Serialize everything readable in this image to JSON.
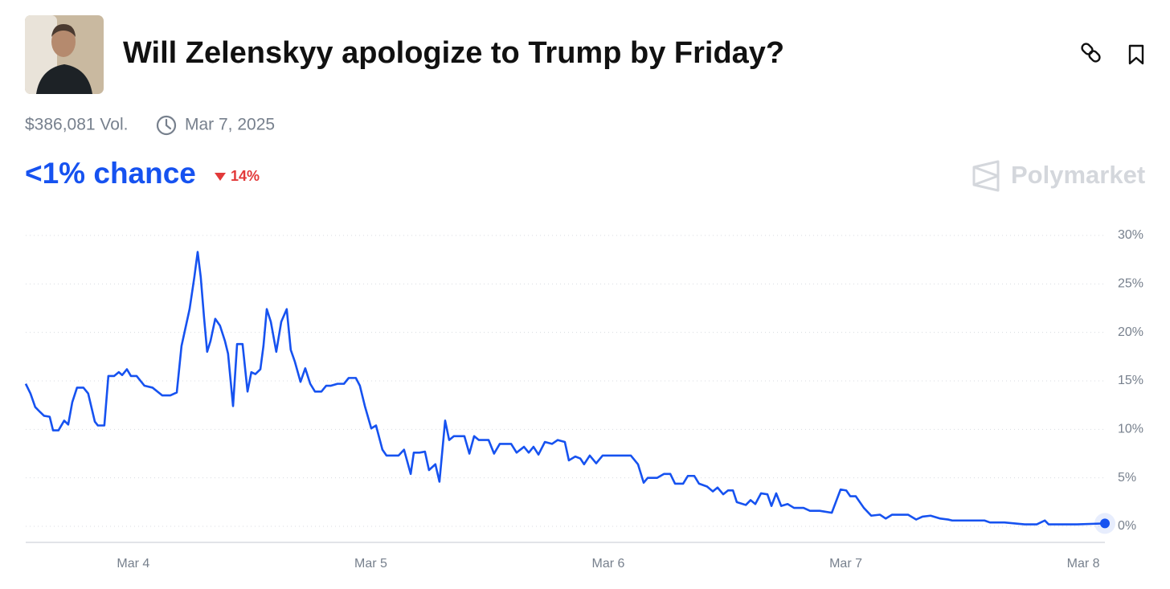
{
  "header": {
    "title": "Will Zelenskyy apologize to Trump by Friday?",
    "volume": "$386,081 Vol.",
    "end_date": "Mar 7, 2025",
    "chance": "<1% chance",
    "change": "14%",
    "brand": "Polymarket"
  },
  "chart_data": {
    "type": "line",
    "color": "#1652f0",
    "x": [
      -0.453,
      -0.433,
      -0.413,
      -0.393,
      -0.376,
      -0.352,
      -0.338,
      -0.315,
      -0.291,
      -0.274,
      -0.257,
      -0.237,
      -0.21,
      -0.19,
      -0.162,
      -0.149,
      -0.122,
      -0.105,
      -0.081,
      -0.061,
      -0.047,
      -0.027,
      -0.01,
      0.014,
      0.047,
      0.081,
      0.122,
      0.156,
      0.183,
      0.203,
      0.237,
      0.257,
      0.271,
      0.284,
      0.298,
      0.311,
      0.325,
      0.345,
      0.365,
      0.386,
      0.399,
      0.42,
      0.437,
      0.46,
      0.481,
      0.497,
      0.514,
      0.535,
      0.548,
      0.562,
      0.579,
      0.602,
      0.623,
      0.646,
      0.663,
      0.68,
      0.704,
      0.724,
      0.745,
      0.765,
      0.792,
      0.812,
      0.832,
      0.86,
      0.887,
      0.907,
      0.937,
      0.954,
      0.975,
      1.002,
      1.022,
      1.049,
      1.066,
      1.117,
      1.14,
      1.168,
      1.181,
      1.205,
      1.228,
      1.245,
      1.272,
      1.289,
      1.313,
      1.33,
      1.35,
      1.394,
      1.415,
      1.435,
      1.455,
      1.496,
      1.519,
      1.543,
      1.591,
      1.614,
      1.645,
      1.665,
      1.685,
      1.706,
      1.733,
      1.763,
      1.787,
      1.817,
      1.834,
      1.861,
      1.882,
      1.898,
      1.922,
      1.949,
      1.976,
      2.095,
      2.125,
      2.149,
      2.166,
      2.206,
      2.234,
      2.261,
      2.281,
      2.315,
      2.335,
      2.362,
      2.382,
      2.416,
      2.44,
      2.46,
      2.484,
      2.504,
      2.525,
      2.541,
      2.579,
      2.599,
      2.619,
      2.643,
      2.67,
      2.687,
      2.707,
      2.728,
      2.755,
      2.782,
      2.822,
      2.849,
      2.89,
      2.941,
      2.958,
      2.978,
      3.002,
      3.019,
      3.042,
      3.076,
      3.107,
      3.144,
      3.168,
      3.195,
      3.262,
      3.296,
      3.323,
      3.357,
      3.398,
      3.431,
      3.448,
      3.584,
      3.607,
      3.668,
      3.753,
      3.804,
      3.838,
      3.854,
      3.973,
      4.091
    ],
    "values": [
      14.7,
      13.7,
      12.3,
      11.8,
      11.4,
      11.3,
      9.9,
      9.9,
      10.9,
      10.5,
      12.8,
      14.3,
      14.3,
      13.7,
      10.8,
      10.4,
      10.4,
      15.5,
      15.5,
      15.9,
      15.6,
      16.2,
      15.5,
      15.5,
      14.5,
      14.3,
      13.5,
      13.5,
      13.8,
      18.6,
      22.4,
      25.7,
      28.3,
      25.7,
      21.5,
      18.0,
      19.1,
      21.4,
      20.7,
      19.1,
      17.8,
      12.4,
      18.8,
      18.8,
      13.9,
      15.9,
      15.7,
      16.2,
      18.6,
      22.4,
      21.1,
      18.0,
      21.1,
      22.4,
      18.2,
      17.0,
      14.9,
      16.3,
      14.7,
      13.9,
      13.9,
      14.5,
      14.5,
      14.7,
      14.7,
      15.3,
      15.3,
      14.5,
      12.4,
      10.1,
      10.4,
      7.9,
      7.3,
      7.3,
      7.9,
      5.4,
      7.6,
      7.6,
      7.7,
      5.8,
      6.4,
      4.6,
      10.9,
      8.9,
      9.3,
      9.3,
      7.5,
      9.3,
      8.9,
      8.9,
      7.5,
      8.5,
      8.5,
      7.6,
      8.2,
      7.6,
      8.2,
      7.4,
      8.7,
      8.5,
      8.9,
      8.7,
      6.8,
      7.2,
      7.0,
      6.4,
      7.3,
      6.5,
      7.3,
      7.3,
      6.4,
      4.5,
      5.0,
      5.0,
      5.4,
      5.4,
      4.4,
      4.4,
      5.2,
      5.2,
      4.4,
      4.1,
      3.6,
      4.0,
      3.3,
      3.7,
      3.7,
      2.5,
      2.2,
      2.7,
      2.3,
      3.4,
      3.3,
      2.1,
      3.4,
      2.1,
      2.3,
      1.9,
      1.9,
      1.6,
      1.6,
      1.4,
      2.5,
      3.8,
      3.7,
      3.1,
      3.1,
      1.9,
      1.1,
      1.2,
      0.8,
      1.2,
      1.2,
      0.7,
      1.0,
      1.1,
      0.8,
      0.7,
      0.6,
      0.6,
      0.4,
      0.4,
      0.2,
      0.2,
      0.6,
      0.2,
      0.2,
      0.3
    ],
    "xlim": [
      -0.453,
      4.091
    ],
    "xticks": [
      {
        "value": 0,
        "label": "Mar 4"
      },
      {
        "value": 1,
        "label": "Mar 5"
      },
      {
        "value": 2,
        "label": "Mar 6"
      },
      {
        "value": 3,
        "label": "Mar 7"
      },
      {
        "value": 4,
        "label": "Mar 8"
      }
    ],
    "ylim": [
      0,
      30
    ],
    "yticks": [
      {
        "value": 0,
        "label": "0%"
      },
      {
        "value": 5,
        "label": "5%"
      },
      {
        "value": 10,
        "label": "10%"
      },
      {
        "value": 15,
        "label": "15%"
      },
      {
        "value": 20,
        "label": "20%"
      },
      {
        "value": 25,
        "label": "25%"
      },
      {
        "value": 30,
        "label": "30%"
      }
    ],
    "grid": true
  }
}
